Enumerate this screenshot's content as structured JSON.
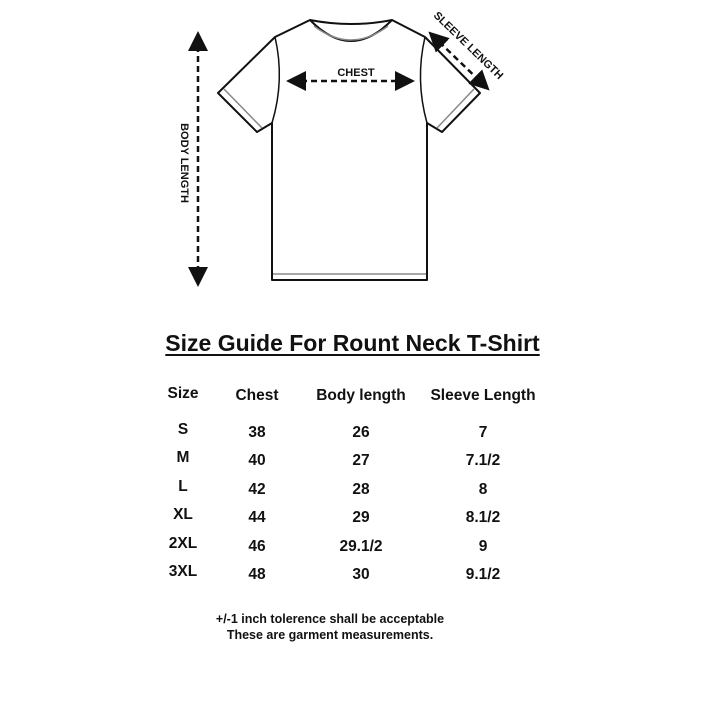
{
  "diagram": {
    "chest_label": "CHEST",
    "sleeve_label": "SLEEVE LENGTH",
    "body_label": "BODY LENGTH"
  },
  "title": "Size Guide For Rount Neck T-Shirt",
  "table": {
    "headers": [
      "Size",
      "Chest",
      "Body length",
      "Sleeve Length"
    ],
    "rows": [
      [
        "S",
        "38",
        "26",
        "7"
      ],
      [
        "M",
        "40",
        "27",
        "7.1/2"
      ],
      [
        "L",
        "42",
        "28",
        "8"
      ],
      [
        "XL",
        "44",
        "29",
        "8.1/2"
      ],
      [
        "2XL",
        "46",
        "29.1/2",
        "9"
      ],
      [
        "3XL",
        "48",
        "30",
        "9.1/2"
      ]
    ]
  },
  "notes": [
    "+/-1 inch tolerence shall be acceptable",
    "These are garment measurements."
  ]
}
